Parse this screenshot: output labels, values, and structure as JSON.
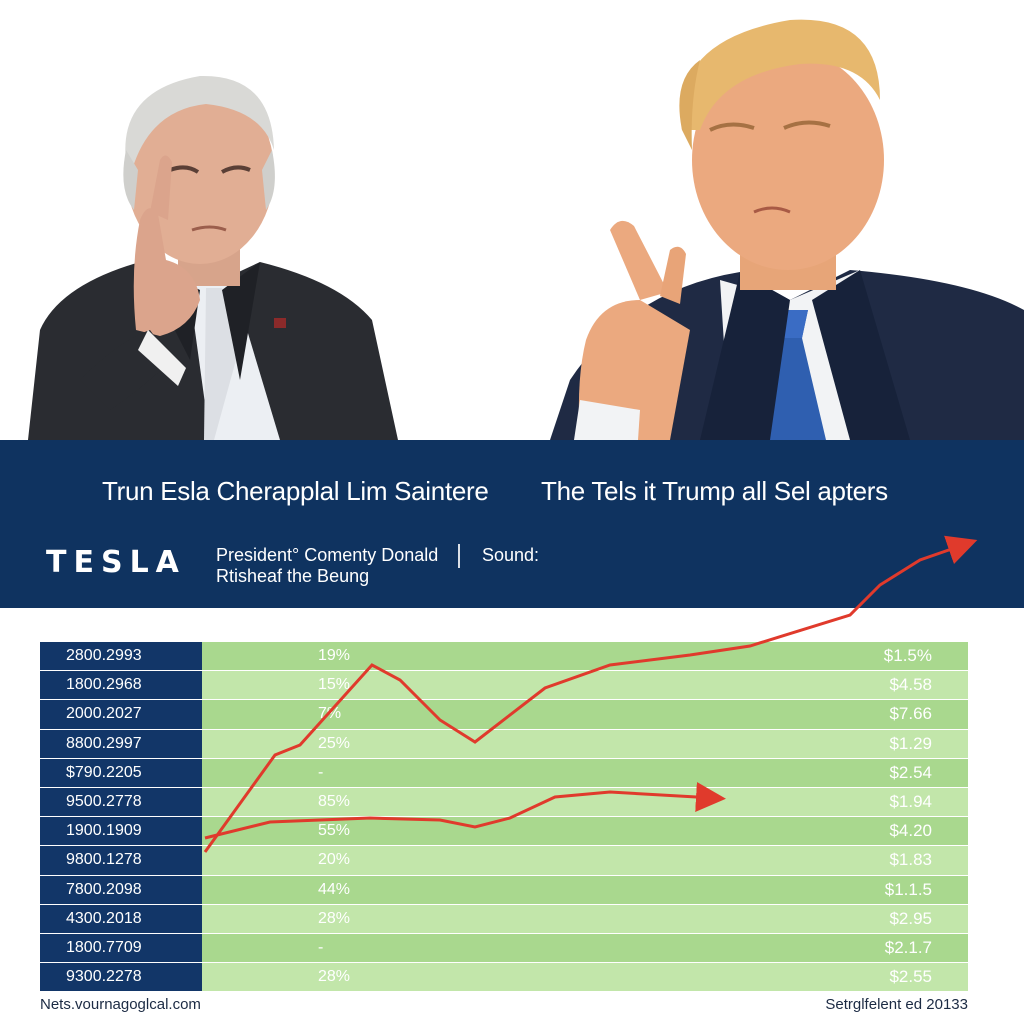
{
  "headline_left": "Trun Esla Cherapplal Lim Saintere",
  "headline_right": "The Tels it Trump all Sel apters",
  "logo": "TESLA",
  "byline_line1": "President° Comenty Donald",
  "byline_line2": "Rtisheaf the Beung",
  "source_label": "Sound:",
  "table_rows": [
    {
      "left": "2800.2993",
      "pct": "19%",
      "val": "$1.5%"
    },
    {
      "left": "1800.2968",
      "pct": "15%",
      "val": "$4.58"
    },
    {
      "left": "2000.2027",
      "pct": "7%",
      "val": "$7.66"
    },
    {
      "left": "8800.2997",
      "pct": "25%",
      "val": "$1.29"
    },
    {
      "left": "$790.2205",
      "pct": "-",
      "val": "$2.54"
    },
    {
      "left": "9500.2778",
      "pct": "85%",
      "val": "$1.94"
    },
    {
      "left": "1900.1909",
      "pct": "55%",
      "val": "$4.20"
    },
    {
      "left": "9800.1278",
      "pct": "20%",
      "val": "$1.83"
    },
    {
      "left": "7800.2098",
      "pct": "44%",
      "val": "$1.1.5"
    },
    {
      "left": "4300.2018",
      "pct": "28%",
      "val": "$2.95"
    },
    {
      "left": "1800.7709",
      "pct": "-",
      "val": "$2.1.7"
    },
    {
      "left": "9300.2278",
      "pct": "28%",
      "val": "$2.55"
    }
  ],
  "footer_left": "Nets.vournagoglcal.com",
  "footer_right": "Setrglfelent ed 20133",
  "colors": {
    "banner": "#0f3360",
    "table_left": "#123668",
    "green_odd": "#a9d88e",
    "green_even": "#c2e6aa",
    "trend_line": "#e03a2c"
  }
}
